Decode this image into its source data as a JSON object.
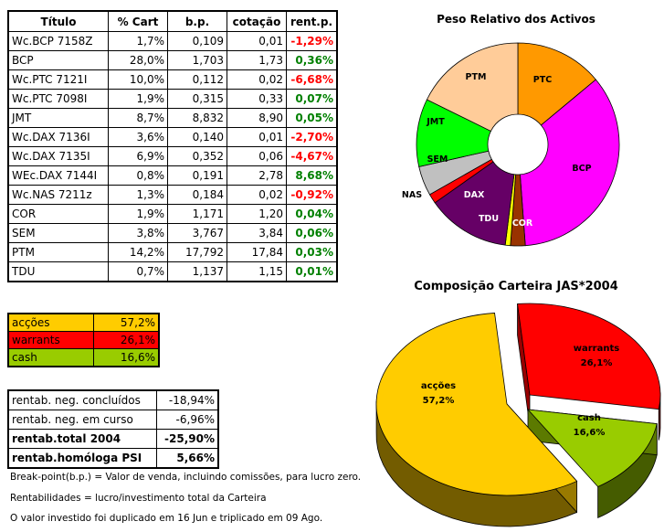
{
  "table": {
    "headers": [
      "Título",
      "% Cart",
      "b.p.",
      "cotação",
      "rent.p."
    ],
    "rows": [
      {
        "titulo": "Wc.BCP 7158Z",
        "cart": "1,7%",
        "bp": "0,109",
        "cot": "0,01",
        "rent": "-1,29%",
        "sign": "neg"
      },
      {
        "titulo": "BCP",
        "cart": "28,0%",
        "bp": "1,703",
        "cot": "1,73",
        "rent": "0,36%",
        "sign": "pos"
      },
      {
        "titulo": "Wc.PTC 7121I",
        "cart": "10,0%",
        "bp": "0,112",
        "cot": "0,02",
        "rent": "-6,68%",
        "sign": "neg"
      },
      {
        "titulo": "Wc.PTC 7098I",
        "cart": "1,9%",
        "bp": "0,315",
        "cot": "0,33",
        "rent": "0,07%",
        "sign": "pos"
      },
      {
        "titulo": "JMT",
        "cart": "8,7%",
        "bp": "8,832",
        "cot": "8,90",
        "rent": "0,05%",
        "sign": "pos"
      },
      {
        "titulo": "Wc.DAX 7136I",
        "cart": "3,6%",
        "bp": "0,140",
        "cot": "0,01",
        "rent": "-2,70%",
        "sign": "neg"
      },
      {
        "titulo": "Wc.DAX 7135I",
        "cart": "6,9%",
        "bp": "0,352",
        "cot": "0,06",
        "rent": "-4,67%",
        "sign": "neg"
      },
      {
        "titulo": "WEc.DAX 7144I",
        "cart": "0,8%",
        "bp": "0,191",
        "cot": "2,78",
        "rent": "8,68%",
        "sign": "pos"
      },
      {
        "titulo": "Wc.NAS 7211z",
        "cart": "1,3%",
        "bp": "0,184",
        "cot": "0,02",
        "rent": "-0,92%",
        "sign": "neg"
      },
      {
        "titulo": "COR",
        "cart": "1,9%",
        "bp": "1,171",
        "cot": "1,20",
        "rent": "0,04%",
        "sign": "pos"
      },
      {
        "titulo": "SEM",
        "cart": "3,8%",
        "bp": "3,767",
        "cot": "3,84",
        "rent": "0,06%",
        "sign": "pos"
      },
      {
        "titulo": "PTM",
        "cart": "14,2%",
        "bp": "17,792",
        "cot": "17,84",
        "rent": "0,03%",
        "sign": "pos"
      },
      {
        "titulo": "TDU",
        "cart": "0,7%",
        "bp": "1,137",
        "cot": "1,15",
        "rent": "0,01%",
        "sign": "pos"
      }
    ]
  },
  "allocation": [
    {
      "label": "acções",
      "value": "57,2%",
      "color": "#ffcc00"
    },
    {
      "label": "warrants",
      "value": "26,1%",
      "color": "#ff0000"
    },
    {
      "label": "cash",
      "value": "16,6%",
      "color": "#99cc00"
    }
  ],
  "returns": [
    {
      "label": "rentab. neg. concluídos",
      "value": "-18,94%",
      "bold": false
    },
    {
      "label": "rentab. neg. em curso",
      "value": "-6,96%",
      "bold": false
    },
    {
      "label": "rentab.total 2004",
      "value": "-25,90%",
      "bold": true
    },
    {
      "label": "rentab.homóloga PSI",
      "value": "5,66%",
      "bold": true
    }
  ],
  "notes": [
    "Break-point(b.p.) = Valor de venda, incluindo comissões, para lucro zero.",
    "Rentabilidades = lucro/investimento total da Carteira",
    "O valor investido foi duplicado em 16 Jun e triplicado em 09 Ago."
  ],
  "chart_data": [
    {
      "type": "pie",
      "title": "Peso Relativo dos Activos",
      "categories": [
        "PTC",
        "BCP",
        "COR",
        "TDU",
        "DAX",
        "NAS",
        "SEM",
        "JMT",
        "PTM"
      ],
      "values": [
        11.9,
        29.7,
        2.0,
        0.7,
        11.3,
        1.3,
        4.0,
        9.2,
        15.1
      ],
      "colors": [
        "#ff9900",
        "#ff00ff",
        "#993300",
        "#ffff00",
        "#660066",
        "#ff0000",
        "#c0c0c0",
        "#00ff00",
        "#ffcc99"
      ]
    },
    {
      "type": "pie",
      "title": "Composição Carteira JAS*2004",
      "categories": [
        "acções",
        "warrants",
        "cash"
      ],
      "values": [
        57.2,
        26.1,
        16.6
      ],
      "labels": [
        "57,2%",
        "26,1%",
        "16,6%"
      ],
      "colors": [
        "#ffcc00",
        "#ff0000",
        "#99cc00"
      ]
    }
  ]
}
